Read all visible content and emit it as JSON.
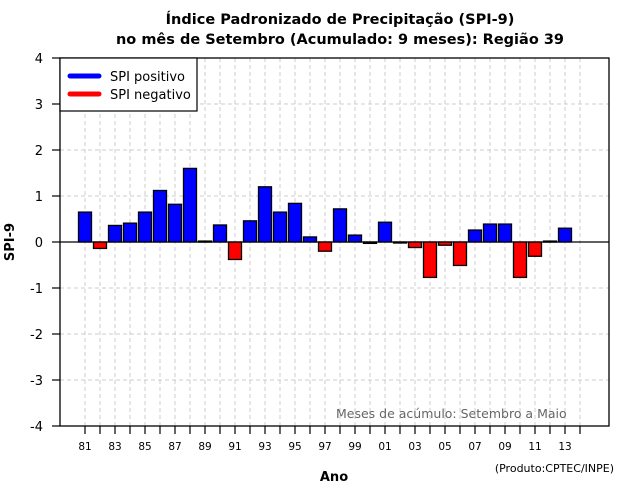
{
  "chart_data": {
    "type": "bar",
    "title_lines": [
      "Índice Padronizado de Precipitação (SPI-9)",
      "no mês de Setembro (Acumulado: 9 meses): Região 39"
    ],
    "xlabel": "Ano",
    "ylabel": "SPI-9",
    "ylim": [
      -4,
      4
    ],
    "yticks": [
      -4,
      -3,
      -2,
      -1,
      0,
      1,
      2,
      3,
      4
    ],
    "xticks": [
      "81",
      "83",
      "85",
      "87",
      "89",
      "91",
      "93",
      "95",
      "97",
      "99",
      "01",
      "03",
      "05",
      "07",
      "09",
      "11",
      "13"
    ],
    "grid": true,
    "legend": {
      "placement": "top-left",
      "entries": [
        {
          "label": "SPI positivo",
          "color": "#0000ff"
        },
        {
          "label": "SPI negativo",
          "color": "#ff0000"
        }
      ]
    },
    "colors": {
      "positive": "#0000ff",
      "negative": "#ff0000",
      "grid": "#cccccc"
    },
    "categories": [
      "1981",
      "1982",
      "1983",
      "1984",
      "1985",
      "1986",
      "1987",
      "1988",
      "1989",
      "1990",
      "1991",
      "1992",
      "1993",
      "1994",
      "1995",
      "1996",
      "1997",
      "1998",
      "1999",
      "2000",
      "2001",
      "2002",
      "2003",
      "2004",
      "2005",
      "2006",
      "2007",
      "2008",
      "2009",
      "2010",
      "2011",
      "2012",
      "2013"
    ],
    "values": [
      0.65,
      -0.14,
      0.36,
      0.41,
      0.65,
      1.12,
      0.82,
      1.6,
      0.02,
      0.37,
      -0.38,
      0.46,
      1.2,
      0.65,
      0.84,
      0.11,
      -0.2,
      0.72,
      0.15,
      -0.03,
      0.43,
      -0.02,
      -0.12,
      -0.77,
      -0.07,
      -0.51,
      0.26,
      0.39,
      0.39,
      -0.77,
      -0.31,
      0.02,
      0.3
    ],
    "annotation": "Meses de acúmulo: Setembro a Maio",
    "credit": "(Produto:CPTEC/INPE)"
  }
}
